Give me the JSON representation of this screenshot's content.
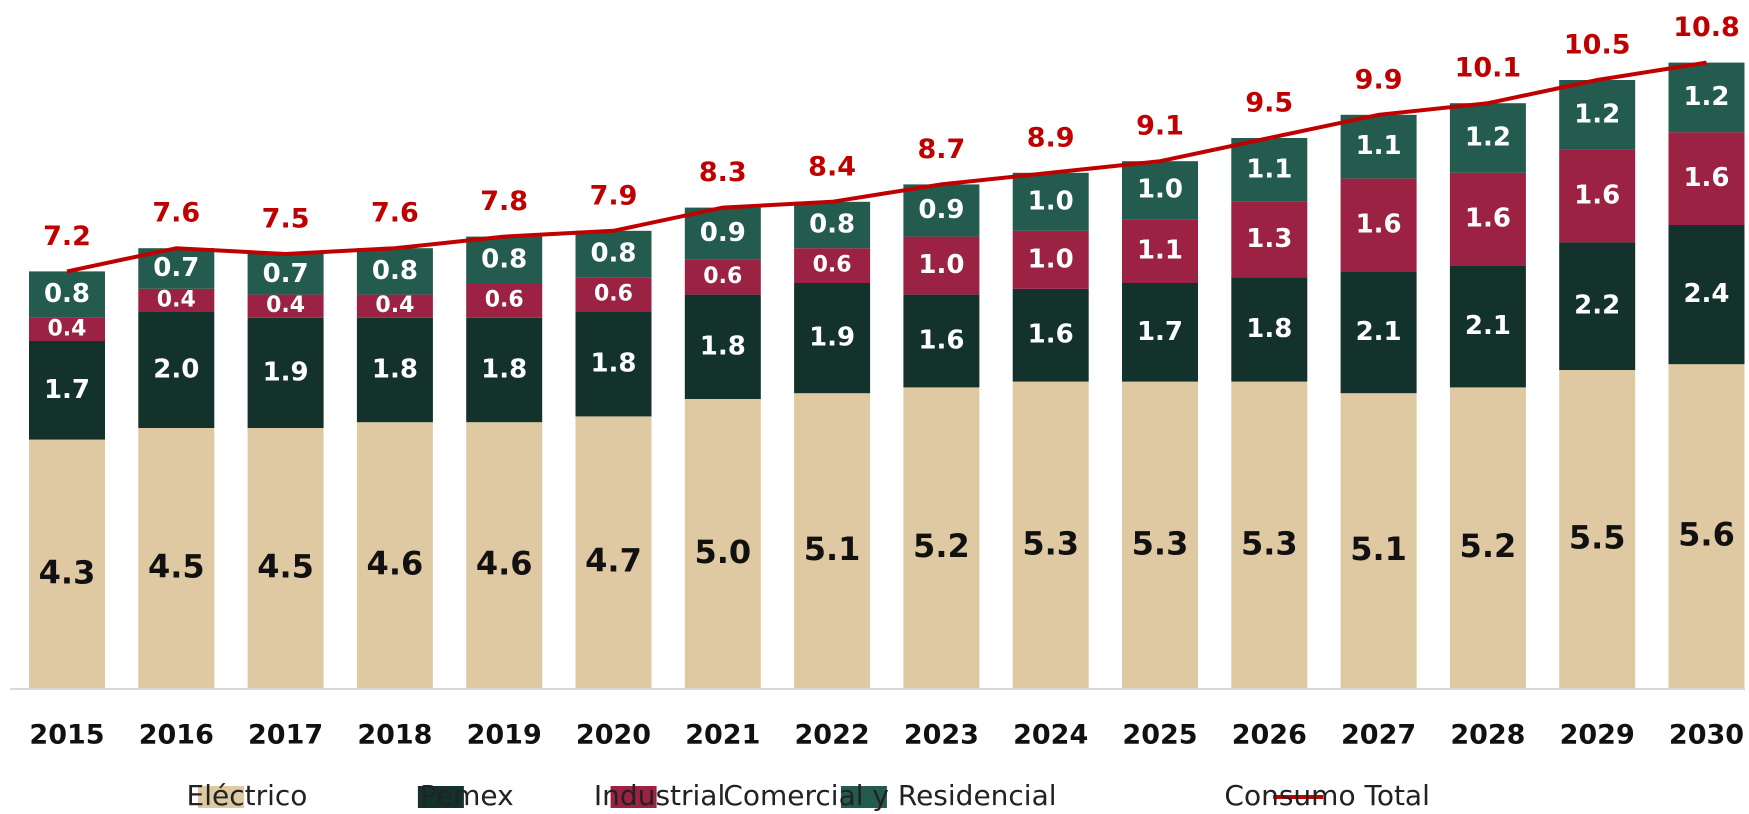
{
  "chart_data": {
    "type": "stacked_bar_line",
    "categories": [
      "2015",
      "2016",
      "2017",
      "2018",
      "2019",
      "2020",
      "2021",
      "2022",
      "2023",
      "2024",
      "2025",
      "2026",
      "2027",
      "2028",
      "2029",
      "2030"
    ],
    "series": [
      {
        "name": "Eléctrico",
        "color": "#dfc9a3",
        "values": [
          4.3,
          4.5,
          4.5,
          4.6,
          4.6,
          4.7,
          5.0,
          5.1,
          5.2,
          5.3,
          5.3,
          5.3,
          5.1,
          5.2,
          5.5,
          5.6
        ],
        "value_labels": [
          "4.3",
          "4.5",
          "4.5",
          "4.6",
          "4.6",
          "4.7",
          "5.0",
          "5.1",
          "5.2",
          "5.3",
          "5.3",
          "5.3",
          "5.1",
          "5.2",
          "5.5",
          "5.6"
        ]
      },
      {
        "name": "Pemex",
        "color": "#13322b",
        "values": [
          1.7,
          2.0,
          1.9,
          1.8,
          1.8,
          1.8,
          1.8,
          1.9,
          1.6,
          1.6,
          1.7,
          1.8,
          2.1,
          2.1,
          2.2,
          2.4
        ],
        "value_labels": [
          "1.7",
          "2.0",
          "1.9",
          "1.8",
          "1.8",
          "1.8",
          "1.8",
          "1.9",
          "1.6",
          "1.6",
          "1.7",
          "1.8",
          "2.1",
          "2.1",
          "2.2",
          "2.4"
        ]
      },
      {
        "name": "Industrial",
        "color": "#9b2242",
        "values": [
          0.4,
          0.4,
          0.4,
          0.4,
          0.6,
          0.6,
          0.6,
          0.6,
          1.0,
          1.0,
          1.1,
          1.3,
          1.6,
          1.6,
          1.6,
          1.6
        ],
        "value_labels": [
          "0.4",
          "0.4",
          "0.4",
          "0.4",
          "0.6",
          "0.6",
          "0.6",
          "0.6",
          "1.0",
          "1.0",
          "1.1",
          "1.3",
          "1.6",
          "1.6",
          "1.6",
          "1.6"
        ]
      },
      {
        "name": "Comercial y Residencial",
        "color": "#235b4e",
        "values": [
          0.8,
          0.7,
          0.7,
          0.8,
          0.8,
          0.8,
          0.9,
          0.8,
          0.9,
          1.0,
          1.0,
          1.1,
          1.1,
          1.2,
          1.2,
          1.2
        ],
        "value_labels": [
          "0.8",
          "0.7",
          "0.7",
          "0.8",
          "0.8",
          "0.8",
          "0.9",
          "0.8",
          "0.9",
          "1.0",
          "1.0",
          "1.1",
          "1.1",
          "1.2",
          "1.2",
          "1.2"
        ]
      },
      {
        "name": "Consumo Total",
        "color": "#c00000",
        "type": "line",
        "values": [
          7.2,
          7.6,
          7.5,
          7.6,
          7.8,
          7.9,
          8.3,
          8.4,
          8.7,
          8.9,
          9.1,
          9.5,
          9.9,
          10.1,
          10.5,
          10.8
        ]
      }
    ]
  }
}
